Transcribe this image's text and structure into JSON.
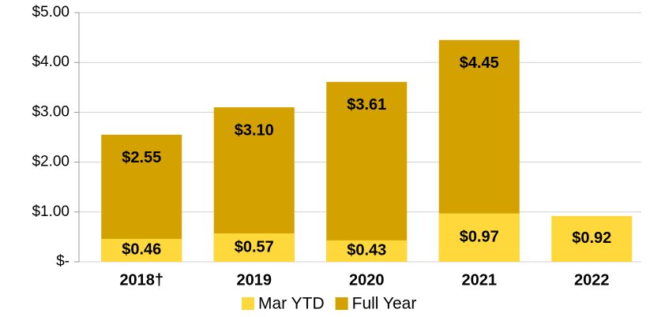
{
  "chart_data": {
    "type": "bar",
    "categories": [
      "2018†",
      "2019",
      "2020",
      "2021",
      "2022"
    ],
    "series": [
      {
        "name": "Full Year",
        "color": "#D4A200",
        "values": [
          2.55,
          3.1,
          3.61,
          4.45,
          null
        ],
        "value_labels": [
          "$2.55",
          "$3.10",
          "$3.61",
          "$4.45",
          null
        ]
      },
      {
        "name": "Mar YTD",
        "color": "#FFD93B",
        "values": [
          0.46,
          0.57,
          0.43,
          0.97,
          0.92
        ],
        "value_labels": [
          "$0.46",
          "$0.57",
          "$0.43",
          "$0.97",
          "$0.92"
        ]
      }
    ],
    "legend_order": [
      "Mar YTD",
      "Full Year"
    ],
    "ylim": [
      0,
      5
    ],
    "yticks": [
      {
        "value": 0,
        "label": "$-"
      },
      {
        "value": 1,
        "label": "$1.00"
      },
      {
        "value": 2,
        "label": "$2.00"
      },
      {
        "value": 3,
        "label": "$3.00"
      },
      {
        "value": 4,
        "label": "$4.00"
      },
      {
        "value": 5,
        "label": "$5.00"
      }
    ],
    "grid": true,
    "legend": "bottom"
  }
}
